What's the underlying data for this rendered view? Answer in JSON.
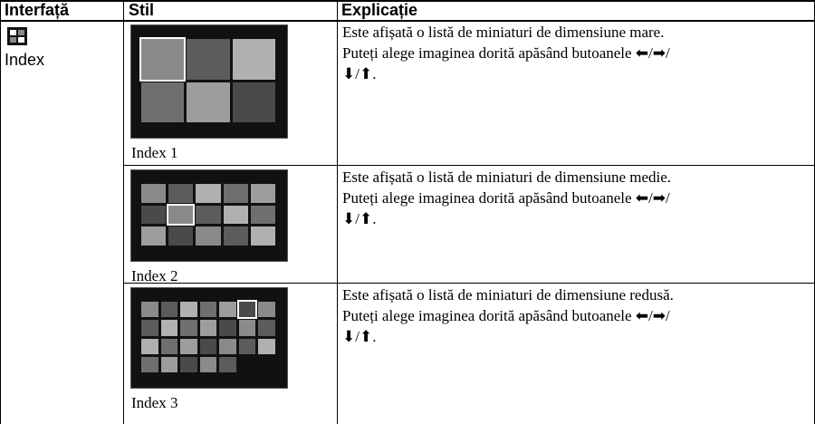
{
  "table": {
    "header": [
      "Interfață",
      "Stil",
      "Explicație"
    ],
    "rows": [
      {
        "interface": "Index",
        "style": "Index 1",
        "explanation": [
          "Este afișată o listă de miniaturi de dimensiune mare.",
          "Puteți alege imaginea dorită apăsând butoanele ⬅/➡/",
          "⬇/⬆."
        ]
      },
      {
        "style": "Index 2",
        "explanation": [
          "Este afișată o listă de miniaturi de dimensiune medie.",
          "Puteți alege imaginea dorită apăsând butoanele ⬅/➡/",
          "⬇/⬆."
        ]
      },
      {
        "style": "Index 3",
        "explanation": [
          "Este afișată o listă de miniaturi de dimensiune redusă.",
          "Puteți alege imaginea dorită apăsând butoanele ⬅/➡/",
          "⬇/⬆."
        ]
      }
    ]
  }
}
